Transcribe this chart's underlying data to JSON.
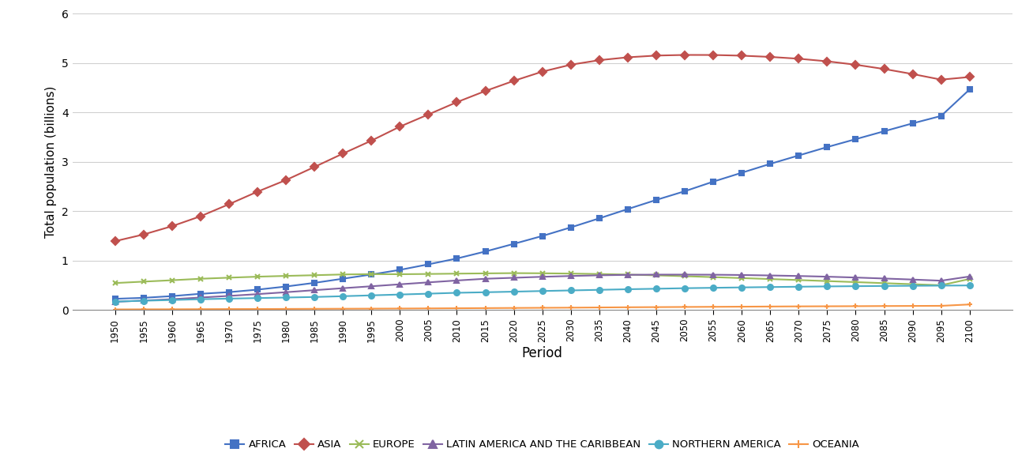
{
  "periods": [
    1950,
    1955,
    1960,
    1965,
    1970,
    1975,
    1980,
    1985,
    1990,
    1995,
    2000,
    2005,
    2010,
    2015,
    2020,
    2025,
    2030,
    2035,
    2040,
    2045,
    2050,
    2055,
    2060,
    2065,
    2070,
    2075,
    2080,
    2085,
    2090,
    2095,
    2100
  ],
  "africa": [
    0.228,
    0.248,
    0.283,
    0.33,
    0.363,
    0.414,
    0.477,
    0.551,
    0.635,
    0.72,
    0.814,
    0.926,
    1.044,
    1.186,
    1.341,
    1.5,
    1.674,
    1.857,
    2.045,
    2.23,
    2.406,
    2.6,
    2.78,
    2.96,
    3.13,
    3.3,
    3.46,
    3.62,
    3.78,
    3.93,
    4.467
  ],
  "asia": [
    1.395,
    1.53,
    1.698,
    1.899,
    2.143,
    2.397,
    2.632,
    2.897,
    3.168,
    3.43,
    3.714,
    3.96,
    4.209,
    4.435,
    4.641,
    4.827,
    4.967,
    5.059,
    5.117,
    5.152,
    5.165,
    5.164,
    5.15,
    5.125,
    5.088,
    5.036,
    4.967,
    4.88,
    4.778,
    4.665,
    4.718
  ],
  "europe": [
    0.547,
    0.576,
    0.604,
    0.634,
    0.656,
    0.676,
    0.692,
    0.706,
    0.721,
    0.728,
    0.726,
    0.731,
    0.738,
    0.743,
    0.748,
    0.745,
    0.739,
    0.73,
    0.718,
    0.703,
    0.686,
    0.667,
    0.648,
    0.628,
    0.608,
    0.587,
    0.566,
    0.545,
    0.524,
    0.503,
    0.63
  ],
  "latin_america": [
    0.168,
    0.193,
    0.22,
    0.254,
    0.287,
    0.323,
    0.362,
    0.403,
    0.443,
    0.482,
    0.522,
    0.561,
    0.599,
    0.634,
    0.654,
    0.674,
    0.69,
    0.704,
    0.713,
    0.718,
    0.718,
    0.716,
    0.71,
    0.701,
    0.69,
    0.676,
    0.659,
    0.639,
    0.618,
    0.595,
    0.68
  ],
  "northern_america": [
    0.172,
    0.189,
    0.204,
    0.22,
    0.232,
    0.243,
    0.254,
    0.265,
    0.281,
    0.298,
    0.315,
    0.332,
    0.35,
    0.361,
    0.373,
    0.386,
    0.398,
    0.41,
    0.422,
    0.432,
    0.443,
    0.451,
    0.459,
    0.466,
    0.473,
    0.479,
    0.484,
    0.488,
    0.492,
    0.495,
    0.499
  ],
  "oceania": [
    0.013,
    0.015,
    0.016,
    0.018,
    0.02,
    0.021,
    0.023,
    0.025,
    0.027,
    0.029,
    0.031,
    0.034,
    0.037,
    0.04,
    0.043,
    0.046,
    0.049,
    0.053,
    0.057,
    0.06,
    0.063,
    0.066,
    0.069,
    0.072,
    0.075,
    0.077,
    0.079,
    0.082,
    0.084,
    0.086,
    0.114
  ],
  "colors": {
    "africa": "#4472C4",
    "asia": "#C0504D",
    "europe": "#9BBB59",
    "latin_america": "#8064A2",
    "northern_america": "#4BACC6",
    "oceania": "#F79646"
  },
  "markers": {
    "africa": "P",
    "asia": "D",
    "europe": "x",
    "latin_america": "P",
    "northern_america": "o",
    "oceania": "P"
  },
  "labels": {
    "africa": "AFRICA",
    "asia": "ASIA",
    "europe": "EUROPE",
    "latin_america": "LATIN AMERICA AND THE CARIBBEAN",
    "northern_america": "NORTHERN AMERICA",
    "oceania": "OCEANIA"
  },
  "ylabel": "Total population (billions)",
  "xlabel": "Period",
  "ylim": [
    0,
    6
  ],
  "yticks": [
    0,
    1,
    2,
    3,
    4,
    5,
    6
  ],
  "background_color": "#ffffff",
  "grid_color": "#d0d0d0"
}
